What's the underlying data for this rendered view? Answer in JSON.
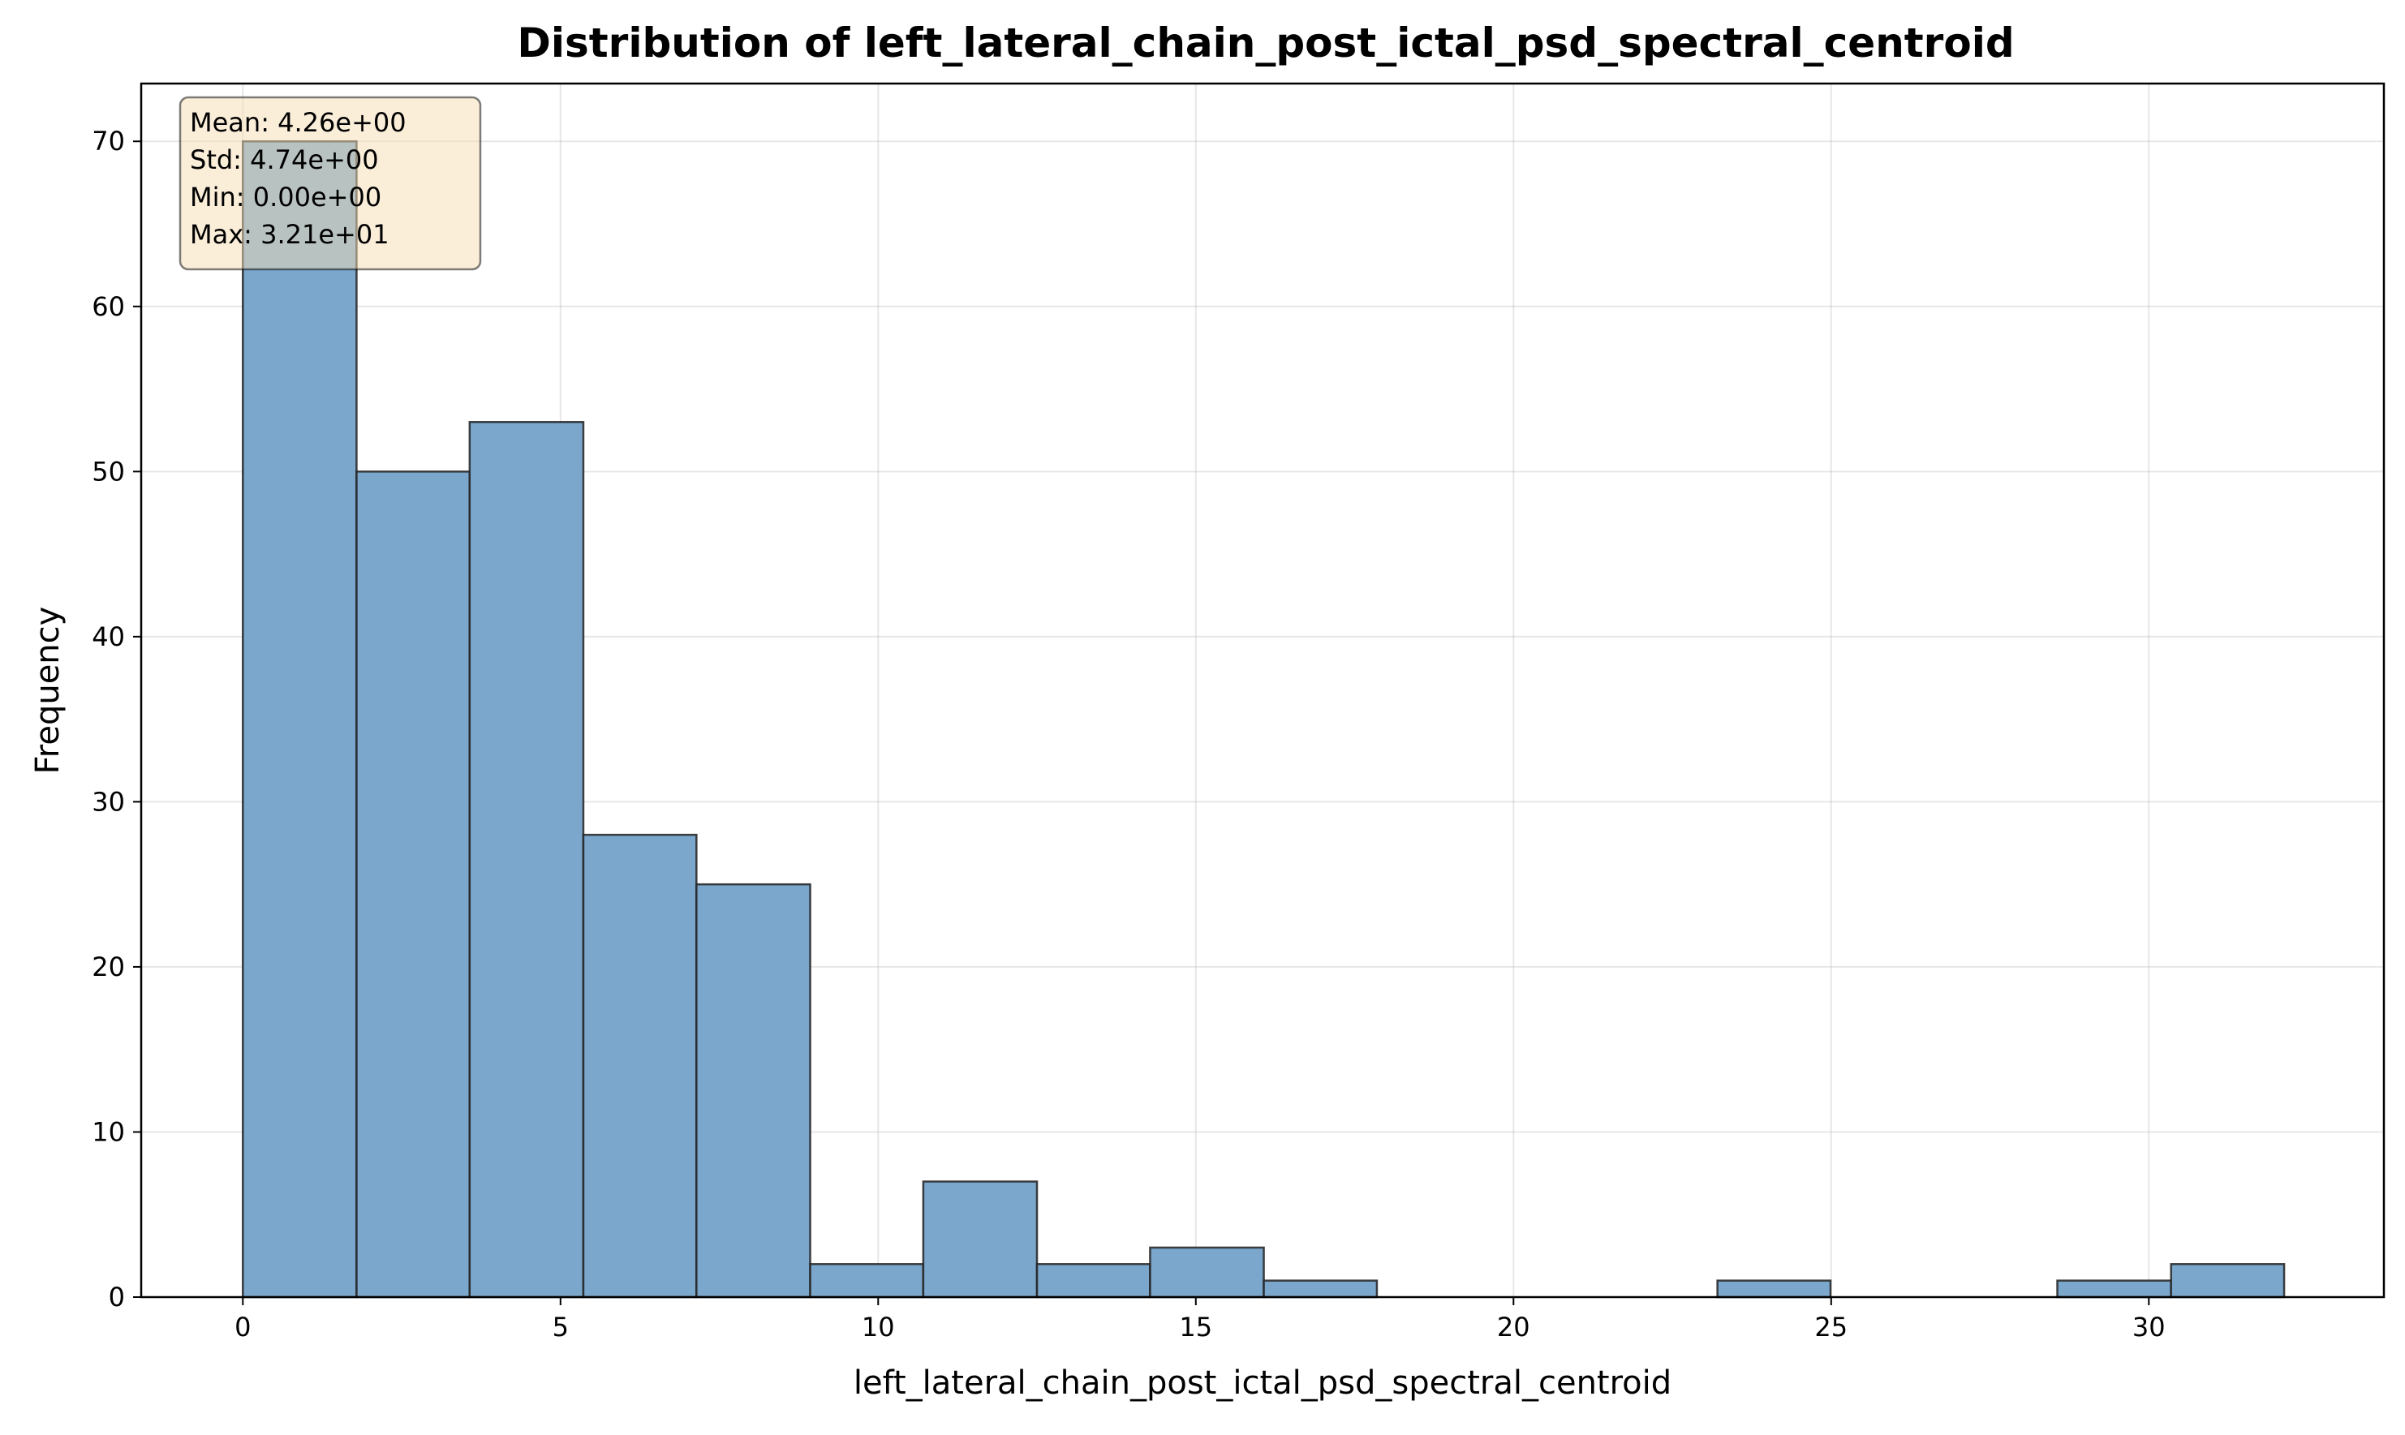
{
  "chart_data": {
    "type": "bar",
    "title": "Distribution of left_lateral_chain_post_ictal_psd_spectral_centroid",
    "xlabel": "left_lateral_chain_post_ictal_psd_spectral_centroid",
    "ylabel": "Frequency",
    "xlim": [
      -1.6,
      33.7
    ],
    "ylim": [
      0,
      73.5
    ],
    "grid": true,
    "bar_color": "#7ba7cc",
    "edge_color": "#222222",
    "xticks": [
      0,
      5,
      10,
      15,
      20,
      25,
      30
    ],
    "yticks": [
      0,
      10,
      20,
      30,
      40,
      50,
      60,
      70
    ],
    "bins": [
      {
        "x0": 0.0,
        "x1": 1.79,
        "count": 70
      },
      {
        "x0": 1.79,
        "x1": 3.57,
        "count": 50
      },
      {
        "x0": 3.57,
        "x1": 5.36,
        "count": 53
      },
      {
        "x0": 5.36,
        "x1": 7.14,
        "count": 28
      },
      {
        "x0": 7.14,
        "x1": 8.93,
        "count": 25
      },
      {
        "x0": 8.93,
        "x1": 10.71,
        "count": 2
      },
      {
        "x0": 10.71,
        "x1": 12.5,
        "count": 7
      },
      {
        "x0": 12.5,
        "x1": 14.28,
        "count": 2
      },
      {
        "x0": 14.28,
        "x1": 16.07,
        "count": 3
      },
      {
        "x0": 16.07,
        "x1": 17.85,
        "count": 1
      },
      {
        "x0": 17.85,
        "x1": 19.64,
        "count": 0
      },
      {
        "x0": 19.64,
        "x1": 21.42,
        "count": 0
      },
      {
        "x0": 21.42,
        "x1": 23.21,
        "count": 0
      },
      {
        "x0": 23.21,
        "x1": 24.99,
        "count": 1
      },
      {
        "x0": 24.99,
        "x1": 26.78,
        "count": 0
      },
      {
        "x0": 26.78,
        "x1": 28.56,
        "count": 0
      },
      {
        "x0": 28.56,
        "x1": 30.35,
        "count": 1
      },
      {
        "x0": 30.35,
        "x1": 32.13,
        "count": 2
      }
    ],
    "stats_box": {
      "lines": [
        "Mean: 4.26e+00",
        "Std: 4.74e+00",
        "Min: 0.00e+00",
        "Max: 3.21e+01"
      ],
      "placement": "top-left",
      "background": "#f5deb3"
    }
  }
}
